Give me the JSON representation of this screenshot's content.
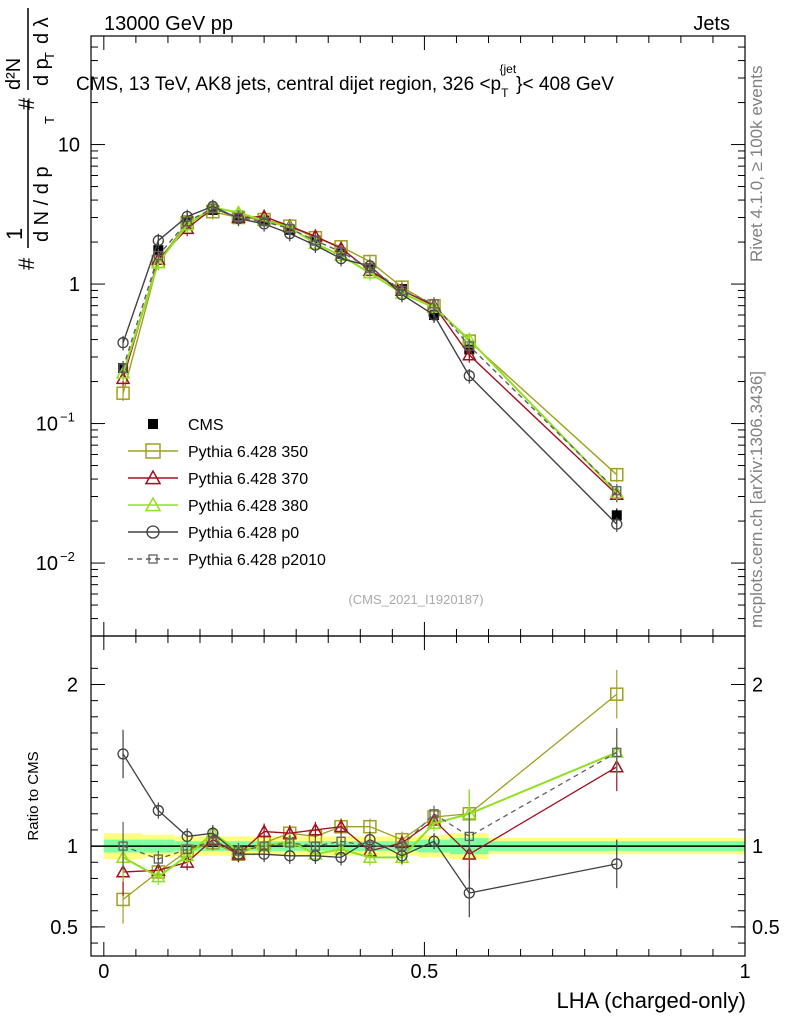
{
  "header": {
    "left": "13000 GeV pp",
    "right": "Jets"
  },
  "side_labels": {
    "rivet": "Rivet 4.1.0, ≥ 100k events",
    "mcplots": "mcplots.cern.ch [arXiv:1306.3436]"
  },
  "analysis_tag": "(CMS_2021_I1920187)",
  "colors": {
    "CMS": "#000000",
    "Pythia 6.428 350": "#a0a020",
    "Pythia 6.428 370": "#a01020",
    "Pythia 6.428 380": "#90e020",
    "Pythia 6.428 p0": "#404040",
    "Pythia 6.428 p2010": "#606060",
    "band_inner": "#80ffa0",
    "band_outer": "#ffff80"
  },
  "chart_data": [
    {
      "type": "line",
      "panel": "main",
      "title": "CMS, 13 TeV, AK8 jets, central dijet region, 326 <p_T^{jet}< 408 GeV",
      "title_parts": {
        "prefix": "CMS, 13 TeV, AK8 jets, central dijet region, 326 <p",
        "sub": "T",
        "sup": "{jet",
        "sup2": "}",
        "suffix": "< 408 GeV"
      },
      "ylabel": "1/N dN/dp_T dλ (d²N / dp_T dλ)",
      "ylabel_parts": {
        "hash": "#",
        "one": "1",
        "dN": "d N / d p",
        "T": "T",
        "d2N": "d²N",
        "dpt": "d p",
        "dl": "d λ"
      },
      "yscale": "log",
      "ylim": [
        0.003,
        60
      ],
      "xlim": [
        -0.02,
        1.0
      ],
      "yticks": [
        {
          "value": 0.01,
          "label": "10",
          "exp": "−2"
        },
        {
          "value": 0.1,
          "label": "10",
          "exp": "−1"
        },
        {
          "value": 1,
          "label": "1",
          "exp": ""
        },
        {
          "value": 10,
          "label": "10",
          "exp": ""
        }
      ],
      "legend_position": "left-middle",
      "x": [
        0.03,
        0.085,
        0.13,
        0.17,
        0.21,
        0.25,
        0.29,
        0.33,
        0.37,
        0.415,
        0.465,
        0.515,
        0.57,
        0.8
      ],
      "series": [
        {
          "name": "CMS",
          "style": "marker",
          "marker": "filled-square",
          "values": [
            0.25,
            1.75,
            2.85,
            3.4,
            3.1,
            2.85,
            2.45,
            2.05,
            1.65,
            1.3,
            0.92,
            0.6,
            0.34,
            0.022
          ]
        },
        {
          "name": "Pythia 6.428 350",
          "style": "line",
          "marker": "open-square",
          "values": [
            0.165,
            1.45,
            2.75,
            3.3,
            3.0,
            2.9,
            2.6,
            2.15,
            1.85,
            1.45,
            0.95,
            0.7,
            0.39,
            0.043
          ]
        },
        {
          "name": "Pythia 6.428 370",
          "style": "line",
          "marker": "open-triangle",
          "values": [
            0.21,
            1.5,
            2.5,
            3.5,
            3.0,
            3.05,
            2.6,
            2.2,
            1.8,
            1.25,
            0.9,
            0.7,
            0.31,
            0.031
          ]
        },
        {
          "name": "Pythia 6.428 380",
          "style": "line",
          "marker": "open-triangle",
          "values": [
            0.23,
            1.42,
            2.65,
            3.55,
            3.25,
            2.85,
            2.55,
            1.95,
            1.6,
            1.2,
            0.86,
            0.68,
            0.4,
            0.032
          ]
        },
        {
          "name": "Pythia 6.428 p0",
          "style": "line",
          "marker": "open-circle",
          "values": [
            0.38,
            2.05,
            3.05,
            3.6,
            2.95,
            2.7,
            2.3,
            1.9,
            1.52,
            1.35,
            0.84,
            0.6,
            0.22,
            0.019
          ]
        },
        {
          "name": "Pythia 6.428 p2010",
          "style": "dashed",
          "marker": "open-square-small",
          "values": [
            0.25,
            1.6,
            2.8,
            3.5,
            3.0,
            2.8,
            2.5,
            2.05,
            1.7,
            1.3,
            0.9,
            0.72,
            0.36,
            0.033
          ]
        }
      ]
    },
    {
      "type": "line",
      "panel": "ratio",
      "ylabel": "Ratio to CMS",
      "ylim": [
        0.32,
        2.3
      ],
      "xlim": [
        -0.02,
        1.0
      ],
      "xlabel": "LHA (charged-only)",
      "yticks": [
        {
          "value": 0.5,
          "label": "0.5"
        },
        {
          "value": 1,
          "label": "1"
        },
        {
          "value": 2,
          "label": "2"
        }
      ],
      "xticks": [
        {
          "value": 0,
          "label": "0"
        },
        {
          "value": 0.5,
          "label": "0.5"
        },
        {
          "value": 1,
          "label": "1"
        }
      ],
      "x": [
        0.03,
        0.085,
        0.13,
        0.17,
        0.21,
        0.25,
        0.29,
        0.33,
        0.37,
        0.415,
        0.465,
        0.515,
        0.57,
        0.8
      ],
      "band": {
        "edges": [
          0.0,
          0.06,
          0.11,
          0.15,
          0.19,
          0.23,
          0.27,
          0.31,
          0.35,
          0.39,
          0.44,
          0.49,
          0.54,
          0.6,
          1.0
        ],
        "inner": [
          0.04,
          0.04,
          0.03,
          0.03,
          0.03,
          0.03,
          0.03,
          0.03,
          0.03,
          0.03,
          0.03,
          0.04,
          0.05,
          0.03
        ],
        "outer": [
          0.08,
          0.07,
          0.06,
          0.06,
          0.06,
          0.06,
          0.06,
          0.06,
          0.06,
          0.06,
          0.06,
          0.07,
          0.08,
          0.05
        ]
      },
      "series": [
        {
          "name": "Pythia 6.428 350",
          "values": [
            0.67,
            0.84,
            0.97,
            1.02,
            0.95,
            1.02,
            1.08,
            1.06,
            1.12,
            1.12,
            1.04,
            1.18,
            1.2,
            1.94
          ]
        },
        {
          "name": "Pythia 6.428 370",
          "values": [
            0.84,
            0.85,
            0.9,
            1.04,
            0.95,
            1.09,
            1.08,
            1.1,
            1.12,
            0.97,
            1.02,
            1.16,
            0.95,
            1.49
          ]
        },
        {
          "name": "Pythia 6.428 380",
          "values": [
            0.93,
            0.81,
            0.94,
            1.08,
            0.97,
            1.0,
            1.03,
            0.95,
            0.98,
            0.93,
            0.93,
            1.14,
            1.2,
            1.58
          ]
        },
        {
          "name": "Pythia 6.428 p0",
          "values": [
            1.57,
            1.22,
            1.06,
            1.08,
            0.95,
            0.95,
            0.94,
            0.94,
            0.93,
            1.04,
            0.94,
            1.03,
            0.71,
            0.89
          ]
        },
        {
          "name": "Pythia 6.428 p2010",
          "values": [
            1.0,
            0.92,
            0.98,
            1.03,
            0.97,
            1.0,
            1.02,
            1.0,
            1.03,
            1.0,
            1.0,
            1.2,
            1.06,
            1.58
          ]
        }
      ]
    }
  ]
}
